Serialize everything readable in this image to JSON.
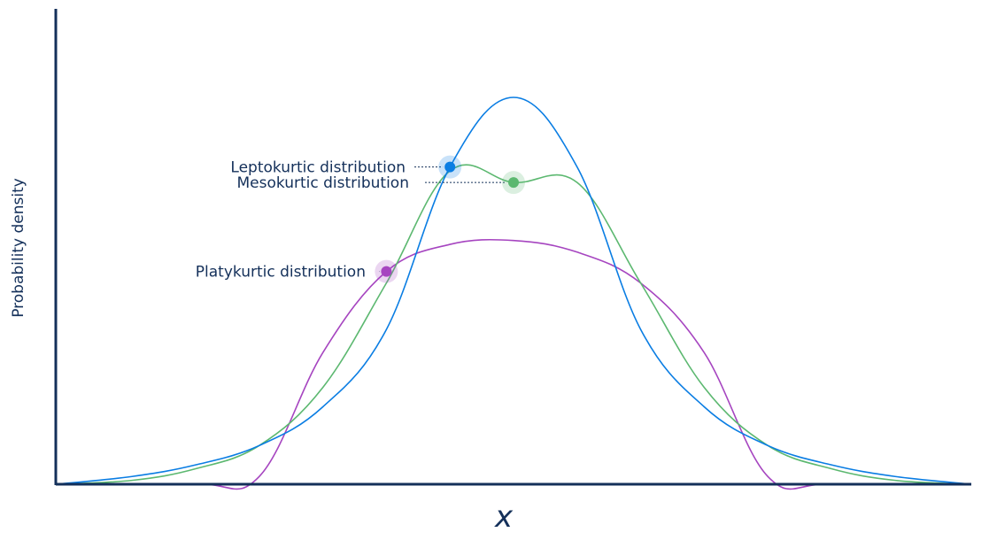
{
  "chart_data": {
    "type": "line",
    "title": "",
    "xlabel": "x",
    "ylabel": "Probability density",
    "grid": false,
    "legend": "none",
    "series": [
      {
        "name": "Leptokurtic distribution",
        "color": "#0a7de3",
        "x": [
          -3.6,
          -3.0,
          -2.5,
          -2.0,
          -1.5,
          -1.0,
          -0.5,
          0.0,
          0.5,
          1.0,
          1.5,
          2.0,
          2.5,
          3.0,
          3.6
        ],
        "y": [
          0.0,
          0.02,
          0.05,
          0.1,
          0.2,
          0.4,
          0.82,
          1.0,
          0.82,
          0.4,
          0.2,
          0.1,
          0.05,
          0.02,
          0.0
        ]
      },
      {
        "name": "Mesokurtic distribution",
        "color": "#5cb870",
        "x": [
          -3.6,
          -3.0,
          -2.5,
          -2.0,
          -1.5,
          -1.0,
          -0.5,
          0.0,
          0.5,
          1.0,
          1.5,
          2.0,
          2.5,
          3.0,
          3.6
        ],
        "y": [
          0.0,
          0.01,
          0.04,
          0.1,
          0.25,
          0.52,
          0.81,
          0.78,
          0.78,
          0.52,
          0.25,
          0.1,
          0.04,
          0.01,
          0.0
        ]
      },
      {
        "name": "Platykurtic distribution",
        "color": "#a645c0",
        "x": [
          -3.6,
          -2.5,
          -2.0,
          -1.5,
          -1.0,
          -0.5,
          0.0,
          0.5,
          1.0,
          1.5,
          2.0,
          2.5,
          3.6
        ],
        "y": [
          0.0,
          0.0,
          0.02,
          0.34,
          0.55,
          0.62,
          0.63,
          0.6,
          0.52,
          0.34,
          0.02,
          0.0,
          0.0
        ]
      }
    ],
    "annotations": [
      {
        "series": 0,
        "label": "Leptokurtic distribution",
        "color": "#0a7de3"
      },
      {
        "series": 1,
        "label": "Mesokurtic distribution",
        "color": "#5cb870"
      },
      {
        "series": 2,
        "label": "Platykurtic distribution",
        "color": "#a645c0"
      }
    ],
    "colors": {
      "axis": "#14305a",
      "label_text": "#14305a"
    }
  }
}
